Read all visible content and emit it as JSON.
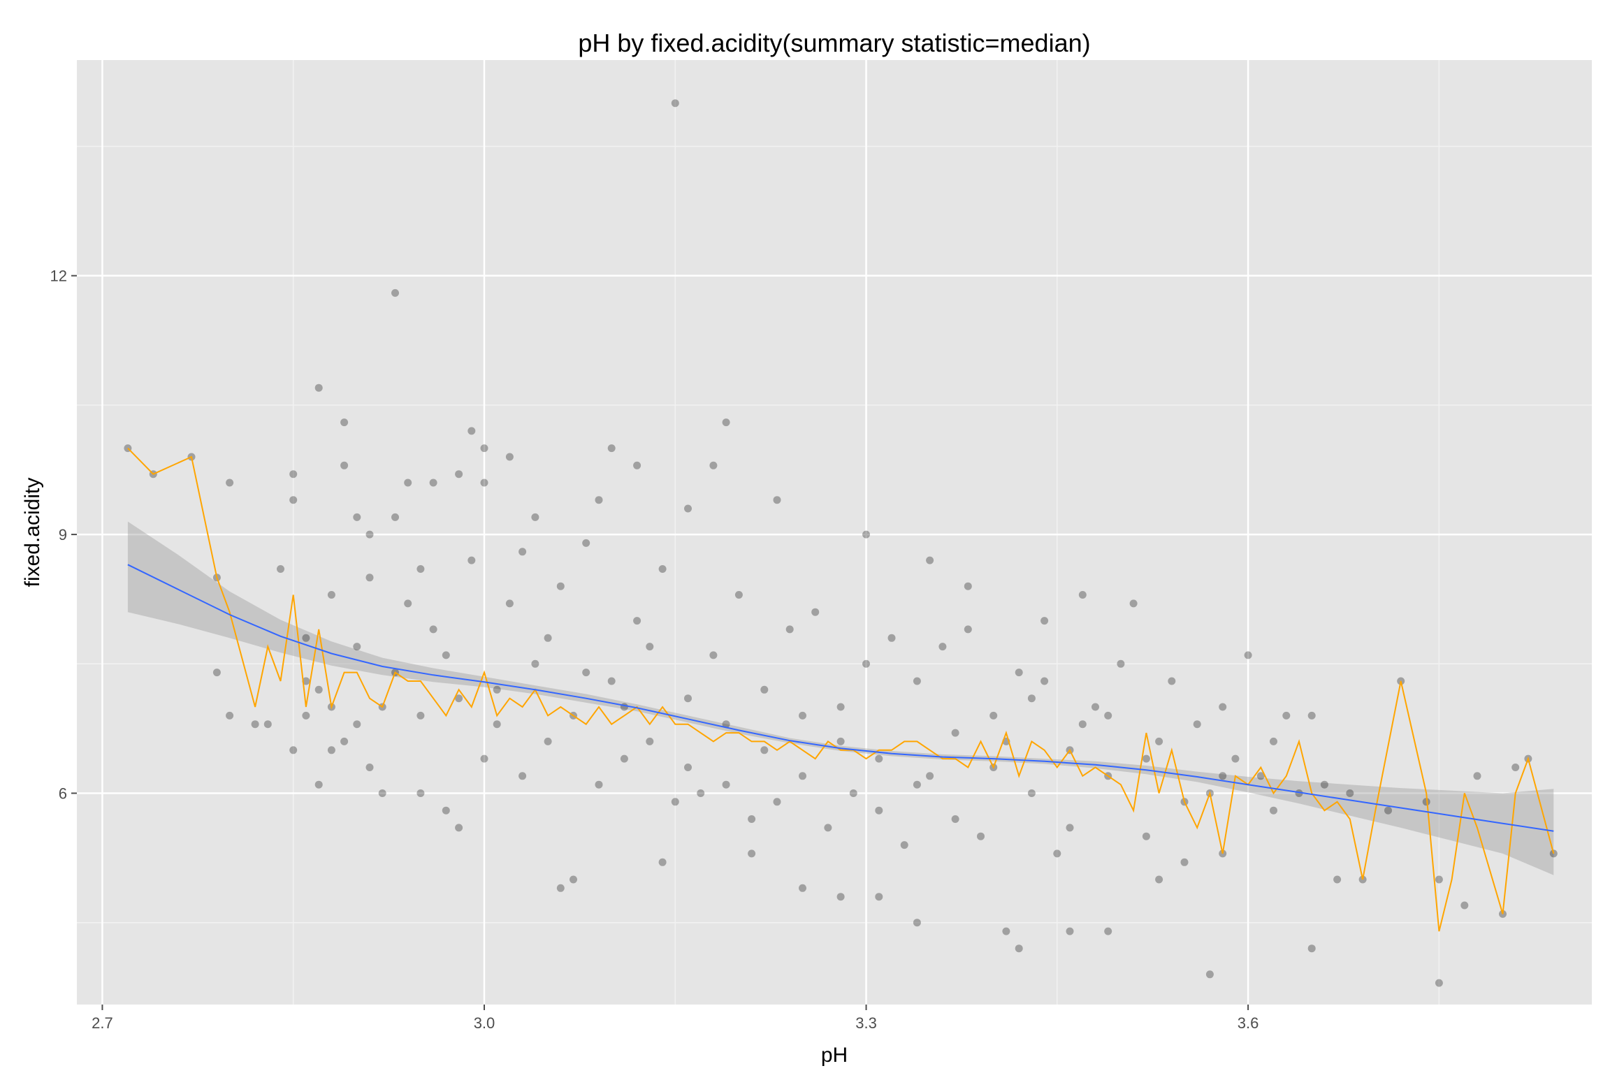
{
  "chart_data": {
    "type": "scatter",
    "title": "pH by fixed.acidity(summary statistic=median)",
    "xlabel": "pH",
    "ylabel": "fixed.acidity",
    "xlim": [
      2.68,
      3.87
    ],
    "ylim": [
      3.55,
      14.5
    ],
    "x_ticks": [
      2.7,
      3.0,
      3.3,
      3.6
    ],
    "x_tick_labels": [
      "2.7",
      "3.0",
      "3.3",
      "3.6"
    ],
    "y_ticks": [
      6,
      9,
      12
    ],
    "y_tick_labels": [
      "6",
      "9",
      "12"
    ],
    "grid": true,
    "legend": "none",
    "colors": {
      "panel_background": "#e5e5e5",
      "grid_major": "#ffffff",
      "grid_minor": "#f2f2f2",
      "points": "#000000",
      "points_opacity": 0.3,
      "median_line": "#ffa500",
      "smooth_line": "#3366ff",
      "confidence_band": "#999999"
    },
    "series": [
      {
        "type": "scatter",
        "points_note": "dense cloud, representative sample",
        "points": [
          [
            2.72,
            10.0
          ],
          [
            2.74,
            9.7
          ],
          [
            2.77,
            9.9
          ],
          [
            2.79,
            8.5
          ],
          [
            2.8,
            9.6
          ],
          [
            2.8,
            6.9
          ],
          [
            2.79,
            7.4
          ],
          [
            2.82,
            6.8
          ],
          [
            2.83,
            6.8
          ],
          [
            2.84,
            8.6
          ],
          [
            2.85,
            9.7
          ],
          [
            2.85,
            9.4
          ],
          [
            2.85,
            6.5
          ],
          [
            2.86,
            7.3
          ],
          [
            2.87,
            10.7
          ],
          [
            2.87,
            6.1
          ],
          [
            2.89,
            10.3
          ],
          [
            2.88,
            7.0
          ],
          [
            2.89,
            9.8
          ],
          [
            2.9,
            9.2
          ],
          [
            2.91,
            9.0
          ],
          [
            2.91,
            6.3
          ],
          [
            2.92,
            6.0
          ],
          [
            2.93,
            11.8
          ],
          [
            2.93,
            9.2
          ],
          [
            2.94,
            9.6
          ],
          [
            2.95,
            8.6
          ],
          [
            2.95,
            6.0
          ],
          [
            2.96,
            9.6
          ],
          [
            2.97,
            5.8
          ],
          [
            2.98,
            5.6
          ],
          [
            2.98,
            9.7
          ],
          [
            2.99,
            10.2
          ],
          [
            3.0,
            10.0
          ],
          [
            3.0,
            9.6
          ],
          [
            3.02,
            9.9
          ],
          [
            3.04,
            9.2
          ],
          [
            3.06,
            4.9
          ],
          [
            3.07,
            5.0
          ],
          [
            3.09,
            9.4
          ],
          [
            3.1,
            10.0
          ],
          [
            3.12,
            9.8
          ],
          [
            3.14,
            5.2
          ],
          [
            3.15,
            14.0
          ],
          [
            3.16,
            9.3
          ],
          [
            3.18,
            9.8
          ],
          [
            3.19,
            10.3
          ],
          [
            3.21,
            5.3
          ],
          [
            3.23,
            9.4
          ],
          [
            3.25,
            4.9
          ],
          [
            3.28,
            4.8
          ],
          [
            3.3,
            9.0
          ],
          [
            3.31,
            4.8
          ],
          [
            3.34,
            4.5
          ],
          [
            3.35,
            8.7
          ],
          [
            3.38,
            8.4
          ],
          [
            3.41,
            4.4
          ],
          [
            3.42,
            4.2
          ],
          [
            3.44,
            8.0
          ],
          [
            3.46,
            4.4
          ],
          [
            3.47,
            8.3
          ],
          [
            3.49,
            4.4
          ],
          [
            3.51,
            8.2
          ],
          [
            3.53,
            5.0
          ],
          [
            3.55,
            5.2
          ],
          [
            3.57,
            3.9
          ],
          [
            3.58,
            6.2
          ],
          [
            3.6,
            7.6
          ],
          [
            3.62,
            6.6
          ],
          [
            3.63,
            6.9
          ],
          [
            3.65,
            4.2
          ],
          [
            3.65,
            6.9
          ],
          [
            3.67,
            5.0
          ],
          [
            3.68,
            6.0
          ],
          [
            3.69,
            5.0
          ],
          [
            3.71,
            5.8
          ],
          [
            3.72,
            7.3
          ],
          [
            3.74,
            5.9
          ],
          [
            3.75,
            5.0
          ],
          [
            3.75,
            3.8
          ],
          [
            3.77,
            4.7
          ],
          [
            3.78,
            6.2
          ],
          [
            3.8,
            4.6
          ],
          [
            3.81,
            6.3
          ],
          [
            3.82,
            6.4
          ],
          [
            3.84,
            5.3
          ],
          [
            3.02,
            8.2
          ],
          [
            3.05,
            7.8
          ],
          [
            3.08,
            7.4
          ],
          [
            3.11,
            7.0
          ],
          [
            3.13,
            6.6
          ],
          [
            3.16,
            6.3
          ],
          [
            3.19,
            6.8
          ],
          [
            3.22,
            6.5
          ],
          [
            3.25,
            6.2
          ],
          [
            3.28,
            6.6
          ],
          [
            3.31,
            6.4
          ],
          [
            3.34,
            6.1
          ],
          [
            3.37,
            6.7
          ],
          [
            3.4,
            6.3
          ],
          [
            3.43,
            6.0
          ],
          [
            3.46,
            6.5
          ],
          [
            3.49,
            6.2
          ],
          [
            3.52,
            6.4
          ],
          [
            3.55,
            5.9
          ],
          [
            2.98,
            7.1
          ],
          [
            3.01,
            6.8
          ],
          [
            3.04,
            7.5
          ],
          [
            3.07,
            6.9
          ],
          [
            3.1,
            7.3
          ],
          [
            3.13,
            7.7
          ],
          [
            3.16,
            7.1
          ],
          [
            3.19,
            6.1
          ],
          [
            3.22,
            7.2
          ],
          [
            3.25,
            6.9
          ],
          [
            3.28,
            7.0
          ],
          [
            3.31,
            5.8
          ],
          [
            3.34,
            7.3
          ],
          [
            3.37,
            5.7
          ],
          [
            3.4,
            6.9
          ],
          [
            3.43,
            7.1
          ],
          [
            3.46,
            5.6
          ],
          [
            3.49,
            6.9
          ],
          [
            2.96,
            7.9
          ],
          [
            3.0,
            6.4
          ],
          [
            3.03,
            6.2
          ],
          [
            3.06,
            8.4
          ],
          [
            3.09,
            6.1
          ],
          [
            3.12,
            8.0
          ],
          [
            3.15,
            5.9
          ],
          [
            3.18,
            7.6
          ],
          [
            3.21,
            5.7
          ],
          [
            3.24,
            7.9
          ],
          [
            3.27,
            5.6
          ],
          [
            3.3,
            7.5
          ],
          [
            3.33,
            5.4
          ],
          [
            3.36,
            7.7
          ],
          [
            3.39,
            5.5
          ],
          [
            3.42,
            7.4
          ],
          [
            3.45,
            5.3
          ],
          [
            3.48,
            7.0
          ],
          [
            2.93,
            7.4
          ],
          [
            2.94,
            8.2
          ],
          [
            2.95,
            6.9
          ],
          [
            2.97,
            7.6
          ],
          [
            2.99,
            8.7
          ],
          [
            3.01,
            7.2
          ],
          [
            3.03,
            8.8
          ],
          [
            3.05,
            6.6
          ],
          [
            3.08,
            8.9
          ],
          [
            3.11,
            6.4
          ],
          [
            3.14,
            8.6
          ],
          [
            3.17,
            6.0
          ],
          [
            3.2,
            8.3
          ],
          [
            3.23,
            5.9
          ],
          [
            3.26,
            8.1
          ],
          [
            3.29,
            6.0
          ],
          [
            3.32,
            7.8
          ],
          [
            3.35,
            6.2
          ],
          [
            3.38,
            7.9
          ],
          [
            3.41,
            6.6
          ],
          [
            3.44,
            7.3
          ],
          [
            3.47,
            6.8
          ],
          [
            3.5,
            7.5
          ],
          [
            3.53,
            6.6
          ],
          [
            3.56,
            6.8
          ],
          [
            3.58,
            5.3
          ],
          [
            3.59,
            6.4
          ],
          [
            3.61,
            6.2
          ],
          [
            3.62,
            5.8
          ],
          [
            3.64,
            6.0
          ],
          [
            3.66,
            6.1
          ],
          [
            3.58,
            7.0
          ],
          [
            3.54,
            7.3
          ],
          [
            3.57,
            6.0
          ],
          [
            3.52,
            5.5
          ],
          [
            2.86,
            7.8
          ],
          [
            2.87,
            7.2
          ],
          [
            2.88,
            8.3
          ],
          [
            2.89,
            6.6
          ],
          [
            2.9,
            7.7
          ],
          [
            2.91,
            8.5
          ],
          [
            2.92,
            7.0
          ],
          [
            2.9,
            6.8
          ],
          [
            2.88,
            6.5
          ],
          [
            2.86,
            6.9
          ]
        ]
      },
      {
        "name": "",
        "type": "line",
        "role": "median",
        "x": [
          2.72,
          2.74,
          2.77,
          2.79,
          2.8,
          2.82,
          2.83,
          2.84,
          2.85,
          2.86,
          2.87,
          2.88,
          2.89,
          2.9,
          2.91,
          2.92,
          2.93,
          2.94,
          2.95,
          2.96,
          2.97,
          2.98,
          2.99,
          3.0,
          3.01,
          3.02,
          3.03,
          3.04,
          3.05,
          3.06,
          3.07,
          3.08,
          3.09,
          3.1,
          3.11,
          3.12,
          3.13,
          3.14,
          3.15,
          3.16,
          3.17,
          3.18,
          3.19,
          3.2,
          3.21,
          3.22,
          3.23,
          3.24,
          3.25,
          3.26,
          3.27,
          3.28,
          3.29,
          3.3,
          3.31,
          3.32,
          3.33,
          3.34,
          3.35,
          3.36,
          3.37,
          3.38,
          3.39,
          3.4,
          3.41,
          3.42,
          3.43,
          3.44,
          3.45,
          3.46,
          3.47,
          3.48,
          3.49,
          3.5,
          3.51,
          3.52,
          3.53,
          3.54,
          3.55,
          3.56,
          3.57,
          3.58,
          3.59,
          3.6,
          3.61,
          3.62,
          3.63,
          3.64,
          3.65,
          3.66,
          3.67,
          3.68,
          3.69,
          3.7,
          3.72,
          3.74,
          3.75,
          3.76,
          3.77,
          3.78,
          3.8,
          3.81,
          3.82,
          3.84
        ],
        "y": [
          10.0,
          9.7,
          9.9,
          8.5,
          8.1,
          7.0,
          7.7,
          7.3,
          8.3,
          7.0,
          7.9,
          7.0,
          7.4,
          7.4,
          7.1,
          7.0,
          7.4,
          7.3,
          7.3,
          7.1,
          6.9,
          7.2,
          7.0,
          7.4,
          6.9,
          7.1,
          7.0,
          7.2,
          6.9,
          7.0,
          6.9,
          6.8,
          7.0,
          6.8,
          6.9,
          7.0,
          6.8,
          7.0,
          6.8,
          6.8,
          6.7,
          6.6,
          6.7,
          6.7,
          6.6,
          6.6,
          6.5,
          6.6,
          6.5,
          6.4,
          6.6,
          6.5,
          6.5,
          6.4,
          6.5,
          6.5,
          6.6,
          6.6,
          6.5,
          6.4,
          6.4,
          6.3,
          6.6,
          6.3,
          6.7,
          6.2,
          6.6,
          6.5,
          6.3,
          6.5,
          6.2,
          6.3,
          6.2,
          6.1,
          5.8,
          6.7,
          6.0,
          6.5,
          5.9,
          5.6,
          6.0,
          5.3,
          6.2,
          6.1,
          6.3,
          6.0,
          6.2,
          6.6,
          6.0,
          5.8,
          5.9,
          5.7,
          5.0,
          5.8,
          7.3,
          6.0,
          4.4,
          5.0,
          6.0,
          5.6,
          4.6,
          6.0,
          6.4,
          5.3
        ]
      },
      {
        "name": "",
        "type": "smooth",
        "role": "loess fit with 95% confidence band",
        "x": [
          2.72,
          2.76,
          2.8,
          2.84,
          2.88,
          2.92,
          2.96,
          3.0,
          3.04,
          3.08,
          3.12,
          3.16,
          3.2,
          3.24,
          3.28,
          3.32,
          3.36,
          3.4,
          3.44,
          3.48,
          3.52,
          3.56,
          3.6,
          3.64,
          3.68,
          3.72,
          3.76,
          3.8,
          3.84
        ],
        "y": [
          8.65,
          8.36,
          8.07,
          7.82,
          7.62,
          7.47,
          7.37,
          7.29,
          7.2,
          7.1,
          6.99,
          6.86,
          6.73,
          6.61,
          6.52,
          6.46,
          6.42,
          6.4,
          6.37,
          6.33,
          6.27,
          6.19,
          6.1,
          6.01,
          5.92,
          5.83,
          5.74,
          5.65,
          5.56
        ],
        "lower": [
          8.1,
          7.96,
          7.8,
          7.63,
          7.48,
          7.37,
          7.29,
          7.23,
          7.15,
          7.05,
          6.95,
          6.82,
          6.69,
          6.58,
          6.49,
          6.43,
          6.39,
          6.37,
          6.34,
          6.29,
          6.22,
          6.13,
          6.01,
          5.88,
          5.74,
          5.6,
          5.45,
          5.3,
          5.05
        ],
        "upper": [
          9.15,
          8.76,
          8.34,
          8.01,
          7.76,
          7.57,
          7.45,
          7.35,
          7.25,
          7.15,
          7.03,
          6.9,
          6.77,
          6.64,
          6.55,
          6.49,
          6.45,
          6.43,
          6.4,
          6.37,
          6.32,
          6.25,
          6.19,
          6.14,
          6.1,
          6.06,
          6.03,
          6.0,
          6.05
        ]
      }
    ]
  }
}
